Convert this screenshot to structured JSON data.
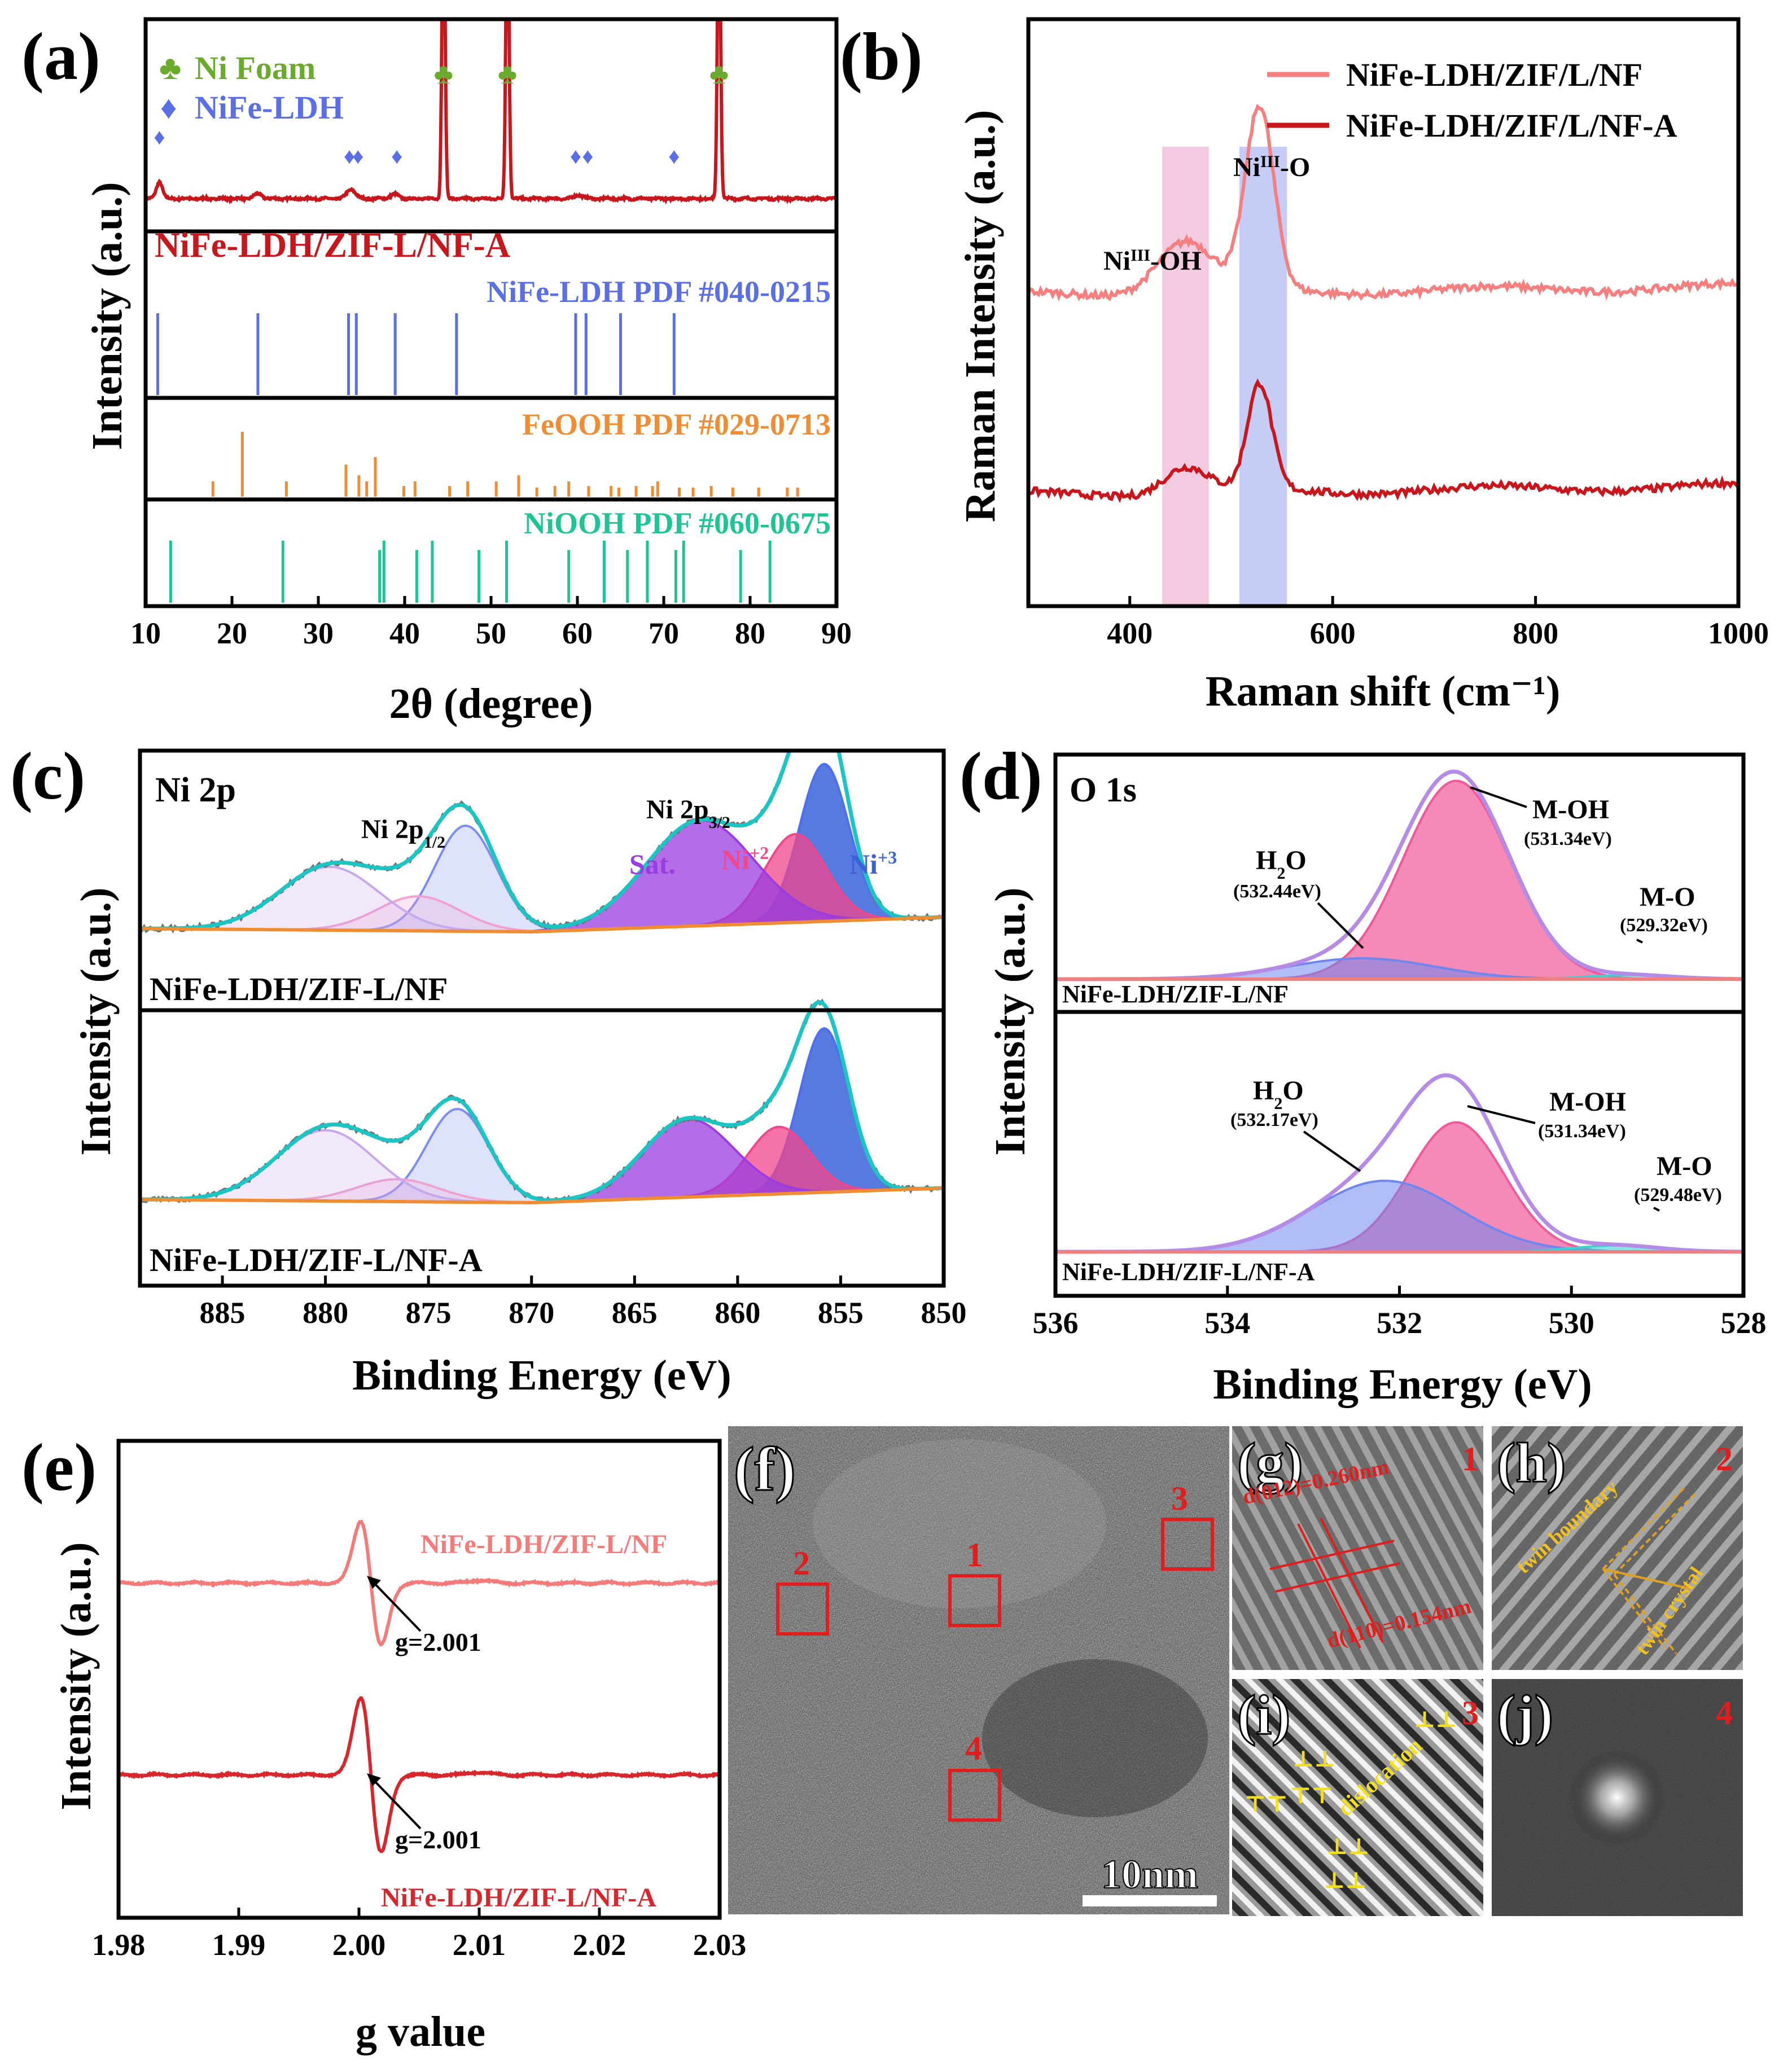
{
  "colors": {
    "ni_foam": "#6aaa2c",
    "nife_ldh": "#5a6fe6",
    "xrd_line": "#c8161d",
    "feooh": "#f08c32",
    "niooh": "#1fc496",
    "raman_nf": "#f57f7f",
    "raman_nfa": "#c8161d",
    "band_pink": "#f0b8d6",
    "band_blue": "#b6bff4",
    "frame": "#000000",
    "label_red": "#d8161d",
    "xps_raw": "#707070",
    "xps_env": "#1cc4c4",
    "xps_base": "#f08c32",
    "ni3": "#3b63d9",
    "ni2": "#f0468c",
    "sat": "#9a3ce0",
    "ni_pink": "#f2a0d0",
    "ni_lav": "#c8a8ec",
    "ni_blue2": "#7b8ef0",
    "o_env": "#b48ce6",
    "moh": "#f0589a",
    "h2o": "#6f86ee",
    "mo": "#40d0d0",
    "epr_nf": "#f57a7a",
    "epr_nfa": "#d8262d",
    "tem_mark": "#e01e1e",
    "tem_yellow": "#f2e020",
    "tem_gold": "#e0a020"
  },
  "panels": {
    "a": {
      "letter": "(a)",
      "ylabel": "Intensity (a.u.)",
      "xlabel": "2θ (degree)",
      "legend": [
        {
          "marker": "♣",
          "label": "Ni Foam"
        },
        {
          "marker": "♦",
          "label": "NiFe-LDH"
        }
      ],
      "sample_label": "NiFe-LDH/ZIF-L/NF-A",
      "ref_labels": [
        "NiFe-LDH  PDF #040-0215",
        "FeOOH  PDF #029-0713",
        "NiOOH  PDF #060-0675"
      ]
    },
    "b": {
      "letter": "(b)",
      "ylabel": "Raman Intensity (a.u.)",
      "xlabel": "Raman shift (cm⁻¹)",
      "legend": [
        "NiFe-LDH/ZIF/L/NF",
        "NiFe-LDH/ZIF/L/NF-A"
      ],
      "band_oh": "Ni^III-OH",
      "band_o": "Ni^III-O"
    },
    "c": {
      "letter": "(c)",
      "ylabel": "Intensity (a.u.)",
      "xlabel": "Binding Energy (eV)",
      "title": "Ni 2p",
      "label_p12": "Ni 2p1/2",
      "label_p32": "Ni 2p3/2",
      "label_sat": "Sat.",
      "label_ni2": "Ni+2",
      "label_ni3": "Ni+3",
      "sample_top": "NiFe-LDH/ZIF-L/NF",
      "sample_bottom": "NiFe-LDH/ZIF-L/NF-A"
    },
    "d": {
      "letter": "(d)",
      "ylabel": "Intensity (a.u.)",
      "xlabel": "Binding Energy (eV)",
      "title": "O 1s",
      "top": {
        "sample": "NiFe-LDH/ZIF-L/NF",
        "h2o": "H2O",
        "h2o_e": "(532.44eV)",
        "moh": "M-OH",
        "moh_e": "(531.34eV)",
        "mo": "M-O",
        "mo_e": "(529.32eV)"
      },
      "bottom": {
        "sample": "NiFe-LDH/ZIF-L/NF-A",
        "h2o": "H2O",
        "h2o_e": "(532.17eV)",
        "moh": "M-OH",
        "moh_e": "(531.34eV)",
        "mo": "M-O",
        "mo_e": "(529.48eV)"
      }
    },
    "e": {
      "letter": "(e)",
      "ylabel": "Intensity (a.u.)",
      "xlabel": "g value",
      "label_nf": "NiFe-LDH/ZIF-L/NF",
      "label_nfa": "NiFe-LDH/ZIF-L/NF-A",
      "g_nf": "g=2.001",
      "g_nfa": "g=2.001"
    },
    "f": {
      "letter": "(f)",
      "scale": "10nm",
      "regions": [
        "1",
        "2",
        "3",
        "4"
      ]
    },
    "g": {
      "letter": "(g)",
      "num": "1",
      "d012": "d(012)=0.260nm",
      "d110": "d(110)=0.154nm"
    },
    "h": {
      "letter": "(h)",
      "num": "2",
      "tb": "twin boundary",
      "tc": "twin crystal"
    },
    "i": {
      "letter": "(i)",
      "num": "3",
      "disl": "dislocation"
    },
    "j": {
      "letter": "(j)",
      "num": "4"
    }
  },
  "chart_data": [
    {
      "panel": "a",
      "type": "line",
      "xlabel": "2θ (degree)",
      "ylabel": "Intensity (a.u.)",
      "xlim": [
        10,
        90
      ],
      "xticks": [
        10,
        20,
        30,
        40,
        50,
        60,
        70,
        80,
        90
      ],
      "series": [
        {
          "name": "NiFe-LDH/ZIF-L/NF-A",
          "peaks": [
            {
              "x": 11.6,
              "h": 0.55,
              "w": 0.35
            },
            {
              "x": 23.0,
              "h": 0.15,
              "w": 0.5
            },
            {
              "x": 33.8,
              "h": 0.3,
              "w": 0.5
            },
            {
              "x": 38.8,
              "h": 0.14,
              "w": 0.5
            },
            {
              "x": 44.5,
              "h": 10,
              "w": 0.18
            },
            {
              "x": 51.9,
              "h": 10,
              "w": 0.18
            },
            {
              "x": 60.2,
              "h": 0.12,
              "w": 0.5
            },
            {
              "x": 76.4,
              "h": 10,
              "w": 0.18
            }
          ]
        }
      ],
      "ni_foam_markers": [
        44.5,
        51.9,
        76.4
      ],
      "nife_ldh_markers": [
        11.6,
        33.6,
        34.6,
        39.1,
        59.8,
        61.2,
        71.2
      ],
      "references": [
        {
          "name": "NiFe-LDH PDF #040-0215",
          "positions": [
            11.4,
            23.0,
            33.5,
            34.4,
            38.9,
            46.0,
            59.8,
            61.0,
            65.0,
            71.2
          ],
          "heights": [
            1,
            1,
            1,
            1,
            1,
            1,
            1,
            1,
            1,
            1
          ]
        },
        {
          "name": "FeOOH PDF #029-0713",
          "positions": [
            17.8,
            21.2,
            26.3,
            33.2,
            34.7,
            35.6,
            36.6,
            39.9,
            41.2,
            45.2,
            47.3,
            50.6,
            53.2,
            55.3,
            57.4,
            59.0,
            61.3,
            63.9,
            64.8,
            66.8,
            68.7,
            69.3,
            71.8,
            73.4,
            75.5,
            78.0,
            81.0,
            84.3,
            85.5
          ],
          "heights": [
            0.2,
            0.85,
            0.2,
            0.42,
            0.28,
            0.2,
            0.52,
            0.14,
            0.2,
            0.14,
            0.2,
            0.2,
            0.28,
            0.12,
            0.14,
            0.2,
            0.14,
            0.14,
            0.12,
            0.14,
            0.14,
            0.2,
            0.12,
            0.12,
            0.14,
            0.12,
            0.12,
            0.12,
            0.12
          ]
        },
        {
          "name": "NiOOH PDF #060-0675",
          "positions": [
            12.9,
            25.9,
            37.1,
            37.6,
            41.4,
            43.2,
            48.6,
            51.8,
            59.0,
            63.1,
            65.8,
            68.1,
            71.4,
            72.3,
            78.9,
            82.3
          ],
          "heights": [
            1,
            1,
            0.85,
            1,
            0.85,
            1,
            0.85,
            1,
            0.85,
            1,
            0.85,
            1,
            0.85,
            1,
            0.85,
            1
          ]
        }
      ]
    },
    {
      "panel": "b",
      "type": "line",
      "xlabel": "Raman shift (cm⁻¹)",
      "ylabel": "Raman Intensity (a.u.)",
      "xlim": [
        300,
        1000
      ],
      "xticks": [
        400,
        600,
        800,
        1000
      ],
      "bands": [
        {
          "label": "Ni^III-OH",
          "range": [
            432,
            478
          ]
        },
        {
          "label": "Ni^III-O",
          "range": [
            508,
            555
          ]
        }
      ],
      "series": [
        {
          "name": "NiFe-LDH/ZIF/L/NF",
          "baseline": 0.53,
          "peaks": [
            {
              "x": 455,
              "h": 0.09,
              "w": 28
            },
            {
              "x": 528,
              "h": 0.31,
              "w": 14
            }
          ]
        },
        {
          "name": "NiFe-LDH/ZIF/L/NF-A",
          "baseline": 0.19,
          "peaks": [
            {
              "x": 455,
              "h": 0.045,
              "w": 22
            },
            {
              "x": 528,
              "h": 0.18,
              "w": 12
            }
          ]
        }
      ]
    },
    {
      "panel": "c",
      "type": "area",
      "xlabel": "Binding Energy (eV)",
      "ylabel": "Intensity (a.u.)",
      "xlim": [
        889,
        850
      ],
      "xticks": [
        885,
        880,
        875,
        870,
        865,
        860,
        855,
        850
      ],
      "series": [
        {
          "name": "NiFe-LDH/ZIF-L/NF",
          "components": [
            {
              "label": "Ni+3",
              "center": 855.8,
              "height": 0.82,
              "width": 1.2
            },
            {
              "label": "Ni+2",
              "center": 857.2,
              "height": 0.46,
              "width": 1.5
            },
            {
              "label": "Sat.",
              "center": 861.8,
              "height": 0.55,
              "width": 2.6
            },
            {
              "center": 873.2,
              "height": 0.55,
              "width": 1.5
            },
            {
              "center": 875.5,
              "height": 0.18,
              "width": 2.0
            },
            {
              "center": 879.8,
              "height": 0.33,
              "width": 2.4
            }
          ]
        },
        {
          "name": "NiFe-LDH/ZIF-L/NF-A",
          "components": [
            {
              "label": "Ni+3",
              "center": 855.8,
              "height": 0.88,
              "width": 1.2
            },
            {
              "label": "Ni+2",
              "center": 858.0,
              "height": 0.36,
              "width": 1.5
            },
            {
              "label": "Sat.",
              "center": 862.4,
              "height": 0.42,
              "width": 2.2
            },
            {
              "center": 873.6,
              "height": 0.5,
              "width": 1.5
            },
            {
              "center": 876.5,
              "height": 0.12,
              "width": 2.0
            },
            {
              "center": 880.0,
              "height": 0.38,
              "width": 2.4
            }
          ]
        }
      ]
    },
    {
      "panel": "d",
      "type": "area",
      "xlabel": "Binding Energy (eV)",
      "ylabel": "Intensity (a.u.)",
      "xlim": [
        536,
        528
      ],
      "xticks": [
        536,
        534,
        532,
        530,
        528
      ],
      "series": [
        {
          "name": "NiFe-LDH/ZIF-L/NF",
          "components": [
            {
              "label": "M-OH",
              "center": 531.34,
              "height": 0.95,
              "width": 0.62
            },
            {
              "label": "H2O",
              "center": 532.44,
              "height": 0.1,
              "width": 0.85
            },
            {
              "label": "M-O",
              "center": 529.32,
              "height": 0.02,
              "width": 0.5
            }
          ]
        },
        {
          "name": "NiFe-LDH/ZIF-L/NF-A",
          "components": [
            {
              "label": "M-OH",
              "center": 531.34,
              "height": 0.62,
              "width": 0.55
            },
            {
              "label": "H2O",
              "center": 532.17,
              "height": 0.34,
              "width": 0.85
            },
            {
              "label": "M-O",
              "center": 529.48,
              "height": 0.03,
              "width": 0.5
            }
          ]
        }
      ]
    },
    {
      "panel": "e",
      "type": "line",
      "xlabel": "g value",
      "ylabel": "Intensity (a.u.)",
      "xlim": [
        1.98,
        2.03
      ],
      "xticks": [
        1.98,
        1.99,
        2.0,
        2.01,
        2.02,
        2.03
      ],
      "series": [
        {
          "name": "NiFe-LDH/ZIF-L/NF",
          "g": 2.001,
          "amplitude": 1.0
        },
        {
          "name": "NiFe-LDH/ZIF-L/NF-A",
          "g": 2.001,
          "amplitude": 1.25
        }
      ]
    }
  ]
}
